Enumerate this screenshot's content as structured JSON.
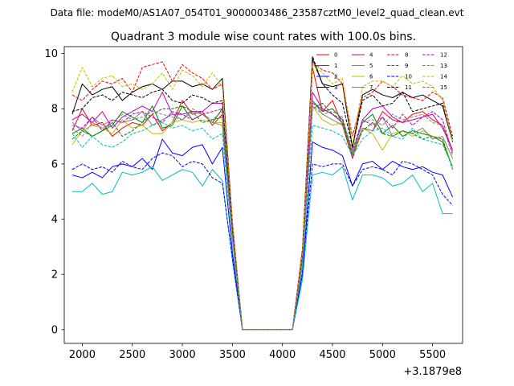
{
  "header": {
    "suptitle": "Data file: modeM0/AS1A07_054T01_9000003486_23587cztM0_level2_quad_clean.evt"
  },
  "chart_data": {
    "type": "line",
    "title": "Quadrant 3 module wise count rates with 100.0s bins.",
    "xlabel": "",
    "ylabel": "",
    "offset_text": "+3.1879e8",
    "xlim": [
      1820,
      5800
    ],
    "ylim": [
      -0.5,
      10.25
    ],
    "xticks": [
      2000,
      2500,
      3000,
      3500,
      4000,
      4500,
      5000,
      5500
    ],
    "yticks": [
      0,
      2,
      4,
      6,
      8,
      10
    ],
    "legend_position": "top-right",
    "x": [
      1900,
      2000,
      2100,
      2200,
      2300,
      2400,
      2500,
      2600,
      2700,
      2800,
      2900,
      3000,
      3100,
      3200,
      3300,
      3400,
      3500,
      3600,
      3700,
      3800,
      3900,
      4000,
      4100,
      4200,
      4300,
      4400,
      4500,
      4600,
      4700,
      4800,
      4900,
      5000,
      5100,
      5200,
      5300,
      5400,
      5500,
      5600,
      5700
    ],
    "series": [
      {
        "name": "0",
        "color": "#ff0000",
        "dash": "solid",
        "values": [
          7.2,
          8.0,
          7.4,
          7.5,
          7.0,
          7.3,
          7.5,
          7.4,
          7.8,
          7.2,
          7.5,
          8.3,
          7.8,
          7.9,
          7.4,
          7.8,
          3.5,
          0,
          0,
          0,
          0,
          0,
          0,
          2.6,
          9.5,
          7.9,
          8.3,
          7.4,
          6.2,
          7.3,
          7.2,
          7.9,
          7.6,
          7.5,
          7.8,
          7.9,
          7.6,
          7.4,
          6.5
        ]
      },
      {
        "name": "1",
        "color": "#008000",
        "dash": "solid",
        "values": [
          7.1,
          7.3,
          7.0,
          7.2,
          7.4,
          7.9,
          7.7,
          7.5,
          8.1,
          7.3,
          7.4,
          8.1,
          7.6,
          7.8,
          7.5,
          8.0,
          3.4,
          0,
          0,
          0,
          0,
          0,
          0,
          2.4,
          8.3,
          7.9,
          8.0,
          7.6,
          6.4,
          7.5,
          7.8,
          7.1,
          7.4,
          7.0,
          7.2,
          7.1,
          7.0,
          6.8,
          5.9
        ]
      },
      {
        "name": "2",
        "color": "#0000ff",
        "dash": "solid",
        "values": [
          5.6,
          5.5,
          5.7,
          5.5,
          5.9,
          6.0,
          5.9,
          6.2,
          5.8,
          6.9,
          6.4,
          6.3,
          6.6,
          6.7,
          6.0,
          6.6,
          2.8,
          0,
          0,
          0,
          0,
          0,
          0,
          2.0,
          6.8,
          6.6,
          6.5,
          6.3,
          5.2,
          6.0,
          6.1,
          5.8,
          6.1,
          5.9,
          5.8,
          5.9,
          5.7,
          5.6,
          4.8
        ]
      },
      {
        "name": "3",
        "color": "#000000",
        "dash": "solid",
        "values": [
          7.8,
          8.9,
          8.5,
          8.7,
          8.8,
          8.3,
          8.6,
          8.8,
          8.9,
          8.7,
          9.0,
          9.0,
          8.8,
          8.9,
          8.7,
          9.1,
          3.9,
          0,
          0,
          0,
          0,
          0,
          0,
          2.9,
          9.8,
          8.9,
          8.8,
          8.9,
          6.6,
          8.5,
          8.7,
          8.5,
          8.4,
          8.6,
          8.4,
          8.5,
          8.3,
          8.1,
          6.8
        ]
      },
      {
        "name": "4",
        "color": "#bf00bf",
        "dash": "solid",
        "values": [
          7.6,
          7.8,
          7.5,
          7.9,
          7.3,
          7.7,
          7.9,
          8.1,
          7.9,
          8.6,
          7.8,
          7.8,
          7.9,
          7.9,
          8.2,
          8.2,
          3.6,
          0,
          0,
          0,
          0,
          0,
          0,
          2.7,
          8.6,
          8.0,
          7.8,
          7.5,
          6.3,
          7.6,
          8.0,
          8.1,
          7.7,
          7.5,
          7.6,
          7.7,
          7.8,
          7.3,
          6.5
        ]
      },
      {
        "name": "5",
        "color": "#00bfbf",
        "dash": "solid",
        "values": [
          5.0,
          5.0,
          5.3,
          4.9,
          5.0,
          5.7,
          5.6,
          5.7,
          5.9,
          5.4,
          5.6,
          5.8,
          5.7,
          5.2,
          5.8,
          5.4,
          2.5,
          0,
          0,
          0,
          0,
          0,
          0,
          1.8,
          5.6,
          5.7,
          5.6,
          5.9,
          4.7,
          5.6,
          5.6,
          5.5,
          5.2,
          5.3,
          5.6,
          5.0,
          5.3,
          4.2,
          4.2
        ]
      },
      {
        "name": "6",
        "color": "#bfbf00",
        "dash": "solid",
        "values": [
          6.7,
          7.2,
          7.4,
          7.3,
          7.1,
          7.6,
          7.3,
          7.4,
          7.1,
          7.1,
          7.5,
          7.6,
          7.5,
          7.6,
          7.5,
          7.5,
          3.3,
          0,
          0,
          0,
          0,
          0,
          0,
          2.4,
          8.1,
          7.6,
          7.4,
          7.5,
          6.3,
          7.3,
          7.1,
          6.5,
          7.1,
          7.2,
          7.0,
          7.2,
          7.0,
          6.9,
          5.9
        ]
      },
      {
        "name": "7",
        "color": "#808080",
        "dash": "solid",
        "values": [
          7.5,
          7.2,
          7.7,
          7.4,
          7.6,
          7.5,
          7.6,
          7.9,
          7.4,
          7.6,
          7.8,
          7.6,
          7.9,
          7.8,
          7.5,
          7.4,
          3.4,
          0,
          0,
          0,
          0,
          0,
          0,
          2.5,
          8.3,
          7.8,
          7.6,
          7.4,
          6.4,
          7.3,
          7.2,
          7.7,
          7.0,
          7.2,
          7.1,
          7.3,
          6.9,
          7.0,
          6.2
        ]
      },
      {
        "name": "8",
        "color": "#ff0000",
        "dash": "dashed",
        "values": [
          8.5,
          8.3,
          8.7,
          9.0,
          8.9,
          9.1,
          8.6,
          9.5,
          9.6,
          9.7,
          9.0,
          9.6,
          9.3,
          9.1,
          8.7,
          8.9,
          3.9,
          0,
          0,
          0,
          0,
          0,
          0,
          2.9,
          9.7,
          9.4,
          9.3,
          8.9,
          7.0,
          8.4,
          8.6,
          9.0,
          8.8,
          8.5,
          8.4,
          8.3,
          8.6,
          8.4,
          7.0
        ]
      },
      {
        "name": "9",
        "color": "#008000",
        "dash": "dashed",
        "values": [
          6.9,
          7.2,
          7.0,
          7.2,
          7.5,
          7.0,
          7.2,
          7.5,
          7.8,
          8.0,
          8.0,
          8.1,
          7.9,
          7.5,
          7.6,
          7.7,
          3.4,
          0,
          0,
          0,
          0,
          0,
          0,
          2.6,
          8.0,
          8.2,
          7.8,
          7.5,
          6.3,
          7.2,
          7.5,
          7.1,
          7.0,
          7.2,
          7.1,
          6.9,
          7.0,
          6.9,
          5.8
        ]
      },
      {
        "name": "10",
        "color": "#0000ff",
        "dash": "dashed",
        "values": [
          5.8,
          6.0,
          5.8,
          5.9,
          5.7,
          6.1,
          5.9,
          5.8,
          6.2,
          6.4,
          6.3,
          5.9,
          6.1,
          6.0,
          5.5,
          5.3,
          2.6,
          0,
          0,
          0,
          0,
          0,
          0,
          2.1,
          6.0,
          5.9,
          6.0,
          6.0,
          5.2,
          5.8,
          5.9,
          5.8,
          5.6,
          6.1,
          6.0,
          5.8,
          5.6,
          4.9,
          4.5
        ]
      },
      {
        "name": "11",
        "color": "#000000",
        "dash": "dashed",
        "values": [
          7.9,
          8.0,
          8.4,
          8.5,
          8.3,
          8.6,
          8.5,
          8.4,
          8.6,
          8.7,
          8.3,
          8.2,
          8.5,
          8.4,
          8.2,
          8.3,
          3.7,
          0,
          0,
          0,
          0,
          0,
          0,
          2.7,
          9.9,
          8.9,
          8.5,
          8.2,
          6.6,
          8.3,
          8.5,
          8.1,
          8.2,
          8.6,
          7.9,
          8.0,
          8.1,
          8.2,
          6.9
        ]
      },
      {
        "name": "12",
        "color": "#bf00bf",
        "dash": "dashed",
        "values": [
          7.4,
          7.3,
          7.7,
          7.2,
          7.6,
          7.5,
          7.8,
          7.9,
          7.7,
          7.5,
          7.9,
          7.8,
          7.6,
          7.8,
          7.9,
          8.0,
          3.5,
          0,
          0,
          0,
          0,
          0,
          0,
          2.5,
          8.2,
          8.0,
          7.8,
          7.6,
          6.5,
          7.6,
          7.4,
          7.7,
          7.3,
          7.8,
          7.4,
          7.7,
          7.9,
          7.6,
          6.4
        ]
      },
      {
        "name": "13",
        "color": "#00bfbf",
        "dash": "dashed",
        "values": [
          7.1,
          6.6,
          7.0,
          6.7,
          6.6,
          6.8,
          7.1,
          7.2,
          7.4,
          7.5,
          7.3,
          7.4,
          7.2,
          7.3,
          6.9,
          7.1,
          3.2,
          0,
          0,
          0,
          0,
          0,
          0,
          2.3,
          7.4,
          7.3,
          7.2,
          7.0,
          6.3,
          6.9,
          7.2,
          7.3,
          7.0,
          6.9,
          7.3,
          6.9,
          6.8,
          6.7,
          5.9
        ]
      },
      {
        "name": "14",
        "color": "#bfbf00",
        "dash": "dashed",
        "values": [
          8.6,
          9.5,
          8.8,
          9.1,
          9.2,
          8.8,
          8.9,
          8.7,
          8.9,
          9.3,
          8.7,
          9.4,
          9.2,
          8.8,
          9.3,
          8.8,
          3.9,
          0,
          0,
          0,
          0,
          0,
          0,
          2.8,
          9.6,
          9.3,
          8.9,
          9.1,
          6.7,
          8.8,
          9.0,
          9.0,
          8.8,
          9.2,
          8.9,
          9.0,
          8.8,
          8.3,
          6.8
        ]
      },
      {
        "name": "15",
        "color": "#808080",
        "dash": "dashed",
        "values": [
          7.3,
          7.0,
          7.5,
          7.3,
          7.5,
          7.8,
          7.6,
          7.7,
          7.9,
          7.8,
          7.7,
          7.6,
          8.0,
          7.8,
          7.6,
          7.9,
          3.4,
          0,
          0,
          0,
          0,
          0,
          0,
          2.5,
          8.1,
          7.8,
          7.9,
          7.7,
          6.4,
          7.5,
          7.6,
          7.4,
          7.8,
          7.6,
          7.7,
          7.8,
          7.5,
          7.4,
          6.3
        ]
      }
    ]
  }
}
